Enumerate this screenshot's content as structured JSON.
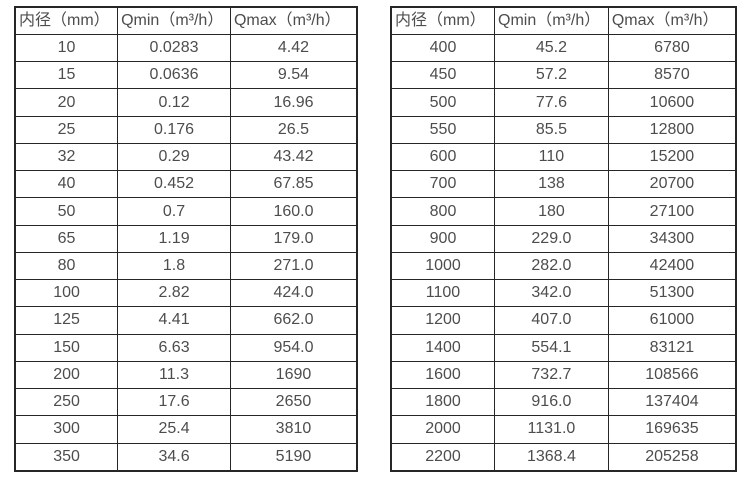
{
  "tables": [
    {
      "name": "small-diameter-flow-table",
      "headers": [
        "内径（mm）",
        "Qmin（m³/h）",
        "Qmax（m³/h）"
      ],
      "rows": [
        [
          "10",
          "0.0283",
          "4.42"
        ],
        [
          "15",
          "0.0636",
          "9.54"
        ],
        [
          "20",
          "0.12",
          "16.96"
        ],
        [
          "25",
          "0.176",
          "26.5"
        ],
        [
          "32",
          "0.29",
          "43.42"
        ],
        [
          "40",
          "0.452",
          "67.85"
        ],
        [
          "50",
          "0.7",
          "160.0"
        ],
        [
          "65",
          "1.19",
          "179.0"
        ],
        [
          "80",
          "1.8",
          "271.0"
        ],
        [
          "100",
          "2.82",
          "424.0"
        ],
        [
          "125",
          "4.41",
          "662.0"
        ],
        [
          "150",
          "6.63",
          "954.0"
        ],
        [
          "200",
          "11.3",
          "1690"
        ],
        [
          "250",
          "17.6",
          "2650"
        ],
        [
          "300",
          "25.4",
          "3810"
        ],
        [
          "350",
          "34.6",
          "5190"
        ]
      ]
    },
    {
      "name": "large-diameter-flow-table",
      "headers": [
        "内径（mm）",
        "Qmin（m³/h）",
        "Qmax（m³/h）"
      ],
      "rows": [
        [
          "400",
          "45.2",
          "6780"
        ],
        [
          "450",
          "57.2",
          "8570"
        ],
        [
          "500",
          "77.6",
          "10600"
        ],
        [
          "550",
          "85.5",
          "12800"
        ],
        [
          "600",
          "110",
          "15200"
        ],
        [
          "700",
          "138",
          "20700"
        ],
        [
          "800",
          "180",
          "27100"
        ],
        [
          "900",
          "229.0",
          "34300"
        ],
        [
          "1000",
          "282.0",
          "42400"
        ],
        [
          "1100",
          "342.0",
          "51300"
        ],
        [
          "1200",
          "407.0",
          "61000"
        ],
        [
          "1400",
          "554.1",
          "83121"
        ],
        [
          "1600",
          "732.7",
          "108566"
        ],
        [
          "1800",
          "916.0",
          "137404"
        ],
        [
          "2000",
          "1131.0",
          "169635"
        ],
        [
          "2200",
          "1368.4",
          "205258"
        ]
      ]
    }
  ],
  "colors": {
    "border": "#262626",
    "text": "#4d4d4d",
    "background": "#ffffff"
  }
}
